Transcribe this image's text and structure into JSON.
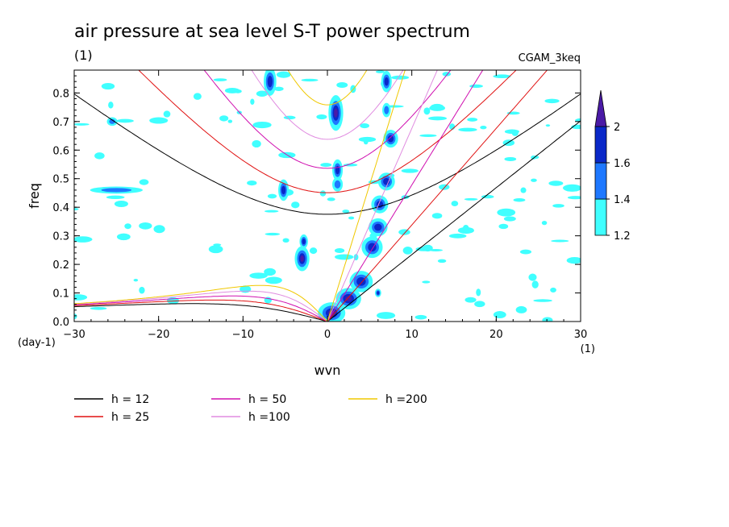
{
  "chart_data": {
    "type": "contour",
    "title": "air pressure at sea level S-T power spectrum",
    "subtitle_left": "(1)",
    "subtitle_right": "CGAM_3keq",
    "xlabel": "wvn",
    "ylabel": "freq",
    "x_unit": "(1)",
    "y_unit": "(day-1)",
    "xlim": [
      -30,
      30
    ],
    "ylim": [
      0,
      0.88
    ],
    "xticks": [
      -30,
      -20,
      -10,
      0,
      10,
      20,
      30
    ],
    "yticks": [
      0.0,
      0.1,
      0.2,
      0.3,
      0.4,
      0.5,
      0.6,
      0.7,
      0.8
    ],
    "colorbar": {
      "levels": [
        1.2,
        1.4,
        1.6,
        2
      ],
      "colors": [
        "#40ffff",
        "#1e78ff",
        "#0a28c8",
        "#4a1aa6"
      ]
    },
    "dispersion_curves": [
      {
        "label": "h = 12",
        "h": 12,
        "color": "#000000"
      },
      {
        "label": "h = 25",
        "h": 25,
        "color": "#e01010"
      },
      {
        "label": "h = 50",
        "h": 50,
        "color": "#d010b0"
      },
      {
        "label": "h =100",
        "h": 100,
        "color": "#e08ce0"
      },
      {
        "label": "h =200",
        "h": 200,
        "color": "#f0c800"
      }
    ],
    "contour_blobs": [
      {
        "x": 1.0,
        "y": 0.73,
        "rx": 0.7,
        "ry": 0.05,
        "level": 3
      },
      {
        "x": -6.8,
        "y": 0.84,
        "rx": 0.6,
        "ry": 0.04,
        "level": 2
      },
      {
        "x": -5.2,
        "y": 0.46,
        "rx": 0.5,
        "ry": 0.03,
        "level": 2
      },
      {
        "x": 1.2,
        "y": 0.53,
        "rx": 0.5,
        "ry": 0.03,
        "level": 2
      },
      {
        "x": 1.2,
        "y": 0.48,
        "rx": 0.5,
        "ry": 0.02,
        "level": 1
      },
      {
        "x": -3.0,
        "y": 0.22,
        "rx": 0.7,
        "ry": 0.035,
        "level": 3
      },
      {
        "x": -2.8,
        "y": 0.28,
        "rx": 0.4,
        "ry": 0.02,
        "level": 2
      },
      {
        "x": 0.5,
        "y": 0.03,
        "rx": 1.3,
        "ry": 0.03,
        "level": 3
      },
      {
        "x": 2.5,
        "y": 0.08,
        "rx": 1.2,
        "ry": 0.03,
        "level": 3
      },
      {
        "x": 4.0,
        "y": 0.14,
        "rx": 1.1,
        "ry": 0.03,
        "level": 2
      },
      {
        "x": 5.3,
        "y": 0.26,
        "rx": 1.0,
        "ry": 0.03,
        "level": 2
      },
      {
        "x": 6.0,
        "y": 0.33,
        "rx": 0.9,
        "ry": 0.025,
        "level": 2
      },
      {
        "x": 6.2,
        "y": 0.41,
        "rx": 0.8,
        "ry": 0.025,
        "level": 2
      },
      {
        "x": 7.0,
        "y": 0.49,
        "rx": 0.8,
        "ry": 0.025,
        "level": 2
      },
      {
        "x": 7.5,
        "y": 0.64,
        "rx": 0.7,
        "ry": 0.025,
        "level": 2
      },
      {
        "x": 7.0,
        "y": 0.84,
        "rx": 0.5,
        "ry": 0.03,
        "level": 2
      },
      {
        "x": 7.0,
        "y": 0.74,
        "rx": 0.4,
        "ry": 0.02,
        "level": 1
      },
      {
        "x": 6.0,
        "y": 0.1,
        "rx": 0.3,
        "ry": 0.012,
        "level": 2
      },
      {
        "x": -25.0,
        "y": 0.46,
        "rx": 2.5,
        "ry": 0.01,
        "level": 1
      },
      {
        "x": -25.5,
        "y": 0.7,
        "rx": 0.5,
        "ry": 0.012,
        "level": 1
      },
      {
        "x": -27.0,
        "y": 0.58,
        "rx": 0.6,
        "ry": 0.012,
        "level": 0
      },
      {
        "x": 13.0,
        "y": 0.75,
        "rx": 0.8,
        "ry": 0.012,
        "level": 0
      },
      {
        "x": 13.0,
        "y": 0.37,
        "rx": 0.6,
        "ry": 0.01,
        "level": 0
      }
    ],
    "noise_seed": 11
  }
}
